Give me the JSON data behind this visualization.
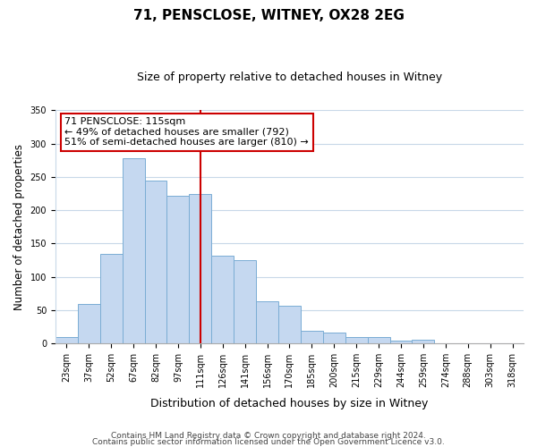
{
  "title": "71, PENSCLOSE, WITNEY, OX28 2EG",
  "subtitle": "Size of property relative to detached houses in Witney",
  "xlabel": "Distribution of detached houses by size in Witney",
  "ylabel": "Number of detached properties",
  "categories": [
    "23sqm",
    "37sqm",
    "52sqm",
    "67sqm",
    "82sqm",
    "97sqm",
    "111sqm",
    "126sqm",
    "141sqm",
    "156sqm",
    "170sqm",
    "185sqm",
    "200sqm",
    "215sqm",
    "229sqm",
    "244sqm",
    "259sqm",
    "274sqm",
    "288sqm",
    "303sqm",
    "318sqm"
  ],
  "values": [
    10,
    60,
    135,
    278,
    245,
    222,
    225,
    132,
    125,
    63,
    57,
    19,
    16,
    10,
    10,
    4,
    6,
    0,
    0,
    0,
    0
  ],
  "bar_color": "#c5d8f0",
  "bar_edge_color": "#7aadd4",
  "marker_index": 6,
  "marker_color": "#cc0000",
  "annotation_line1": "71 PENSCLOSE: 115sqm",
  "annotation_line2": "← 49% of detached houses are smaller (792)",
  "annotation_line3": "51% of semi-detached houses are larger (810) →",
  "annotation_box_color": "#ffffff",
  "annotation_box_edge": "#cc0000",
  "ylim": [
    0,
    350
  ],
  "yticks": [
    0,
    50,
    100,
    150,
    200,
    250,
    300,
    350
  ],
  "footer1": "Contains HM Land Registry data © Crown copyright and database right 2024.",
  "footer2": "Contains public sector information licensed under the Open Government Licence v3.0.",
  "bg_color": "#ffffff",
  "grid_color": "#c8d8e8",
  "title_fontsize": 11,
  "subtitle_fontsize": 9,
  "ylabel_fontsize": 8.5,
  "xlabel_fontsize": 9,
  "tick_fontsize": 7,
  "footer_fontsize": 6.5,
  "annot_fontsize": 8
}
